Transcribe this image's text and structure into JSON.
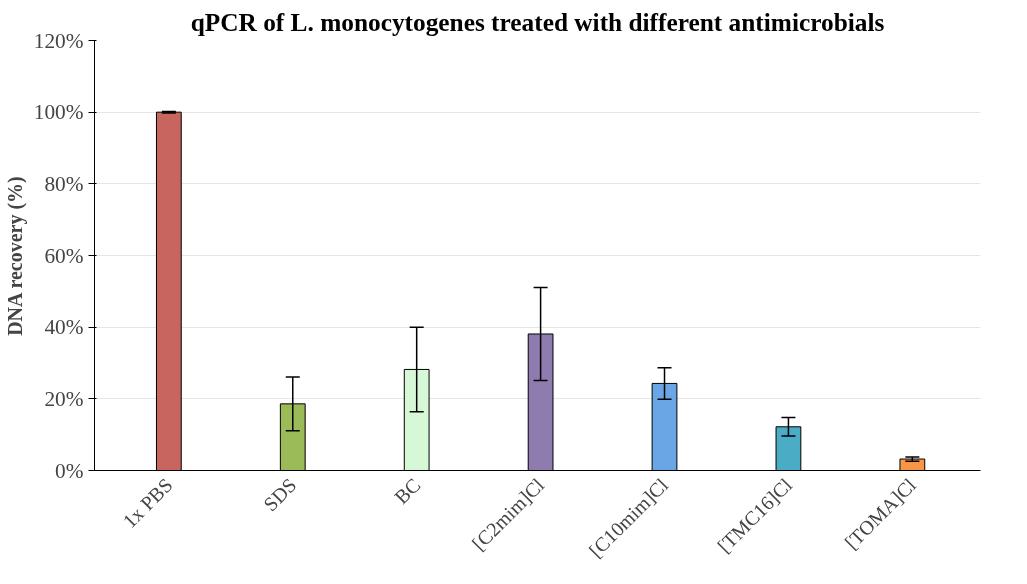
{
  "chart_data": {
    "type": "bar",
    "title": "qPCR of L. monocytogenes treated with different antimicrobials",
    "ylabel": "DNA recovery (%)",
    "categories": [
      "1x PBS",
      "SDS",
      "BC",
      "[C2mim]Cl",
      "[C10mim]Cl",
      "[TMC16]Cl",
      "[TOMA]Cl"
    ],
    "values": [
      100,
      18.6,
      28.2,
      38.1,
      24.3,
      12.2,
      3.2
    ],
    "errors": [
      0.2,
      7.5,
      11.8,
      13,
      4.4,
      2.6,
      0.6
    ],
    "colors": [
      "#c9655f",
      "#9bbb59",
      "#d6f8d6",
      "#8e7cb0",
      "#6aa6e6",
      "#4bacc6",
      "#f79646"
    ],
    "ylim": [
      0,
      120
    ],
    "yticks": [
      {
        "value": 0,
        "label": "0%"
      },
      {
        "value": 20,
        "label": "20%"
      },
      {
        "value": 40,
        "label": "40%"
      },
      {
        "value": 60,
        "label": "60%"
      },
      {
        "value": 80,
        "label": "80%"
      },
      {
        "value": 100,
        "label": "100%"
      },
      {
        "value": 120,
        "label": "120%"
      }
    ],
    "grid": "y"
  }
}
